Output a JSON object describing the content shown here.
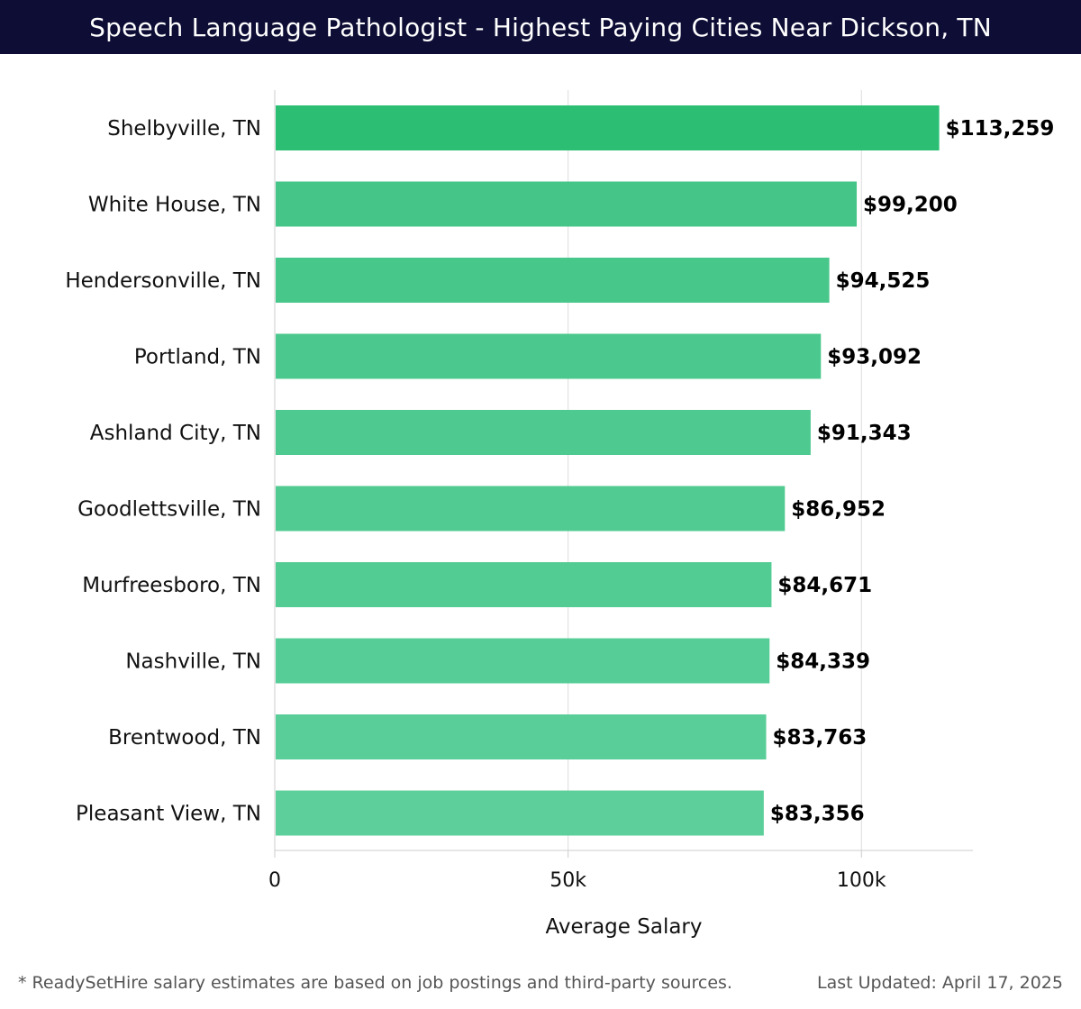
{
  "header": {
    "title": "Speech Language Pathologist - Highest Paying Cities Near Dickson, TN"
  },
  "chart_data": {
    "type": "bar",
    "orientation": "horizontal",
    "title": "Speech Language Pathologist - Highest Paying Cities Near Dickson, TN",
    "categories": [
      "Shelbyville, TN",
      "White House, TN",
      "Hendersonville, TN",
      "Portland, TN",
      "Ashland City, TN",
      "Goodlettsville, TN",
      "Murfreesboro, TN",
      "Nashville, TN",
      "Brentwood, TN",
      "Pleasant View, TN"
    ],
    "values": [
      113259,
      99200,
      94525,
      93092,
      91343,
      86952,
      84671,
      84339,
      83763,
      83356
    ],
    "value_labels": [
      "$113,259",
      "$99,200",
      "$94,525",
      "$93,092",
      "$91,343",
      "$86,952",
      "$84,671",
      "$84,339",
      "$83,763",
      "$83,356"
    ],
    "xlabel": "Average Salary",
    "ylabel": "",
    "xlim": [
      0,
      119000
    ],
    "xticks": [
      0,
      50000,
      100000
    ],
    "xtick_labels": [
      "0",
      "50k",
      "100k"
    ],
    "grid": true,
    "colors": {
      "top_bar": "#2cbf74",
      "bar_start": "#45c688",
      "bar_end": "#5ccf9a",
      "grid": "#dddddd",
      "axis": "#cccccc",
      "text": "#111111"
    }
  },
  "footer": {
    "note": "* ReadySetHire salary estimates are based on job postings and third-party sources.",
    "updated": "Last Updated: April 17, 2025"
  }
}
